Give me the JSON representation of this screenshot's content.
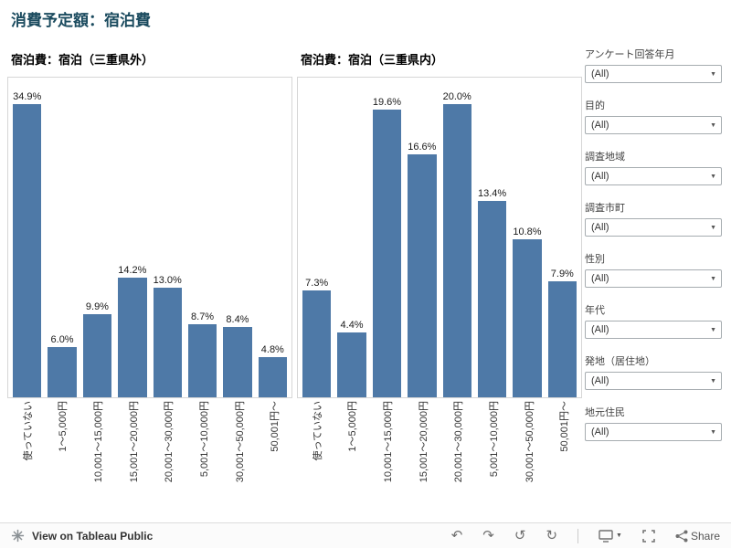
{
  "title": "消費予定額：宿泊費",
  "colors": {
    "bar": "#4e79a7",
    "title_text": "#1b4b5f"
  },
  "chart_data": [
    {
      "type": "bar",
      "title": "宿泊費：宿泊（三重県外）",
      "categories": [
        "使っていない",
        "1～5,000円",
        "10,001～15,000円",
        "15,001～20,000円",
        "20,001～30,000円",
        "5,001～10,000円",
        "30,001～50,000円",
        "50,001円～"
      ],
      "values": [
        34.9,
        6.0,
        9.9,
        14.2,
        13.0,
        8.7,
        8.4,
        4.8
      ],
      "value_suffix": "%",
      "ylim": [
        0,
        38
      ],
      "grid": false,
      "bar_color": "#4e79a7",
      "legend": "none"
    },
    {
      "type": "bar",
      "title": "宿泊費：宿泊（三重県内）",
      "categories": [
        "使っていない",
        "1～5,000円",
        "10,001～15,000円",
        "15,001～20,000円",
        "20,001～30,000円",
        "5,001～10,000円",
        "30,001～50,000円",
        "50,001円～"
      ],
      "values": [
        7.3,
        4.4,
        19.6,
        16.6,
        20.0,
        13.4,
        10.8,
        7.9
      ],
      "value_suffix": "%",
      "ylim": [
        0,
        21.8
      ],
      "grid": false,
      "bar_color": "#4e79a7",
      "legend": "none"
    }
  ],
  "filters": [
    {
      "label": "アンケート回答年月",
      "value": "(All)"
    },
    {
      "label": "目的",
      "value": "(All)"
    },
    {
      "label": "調査地域",
      "value": "(All)"
    },
    {
      "label": "調査市町",
      "value": "(All)"
    },
    {
      "label": "性別",
      "value": "(All)"
    },
    {
      "label": "年代",
      "value": "(All)"
    },
    {
      "label": "発地（居住地）",
      "value": "(All)"
    },
    {
      "label": "地元住民",
      "value": "(All)"
    }
  ],
  "toolbar": {
    "view_label": "View on Tableau Public",
    "share_label": "Share",
    "icons": {
      "undo": "↶",
      "redo": "↷",
      "reset": "↺",
      "refresh": "↻",
      "dropdown": "▼"
    }
  }
}
